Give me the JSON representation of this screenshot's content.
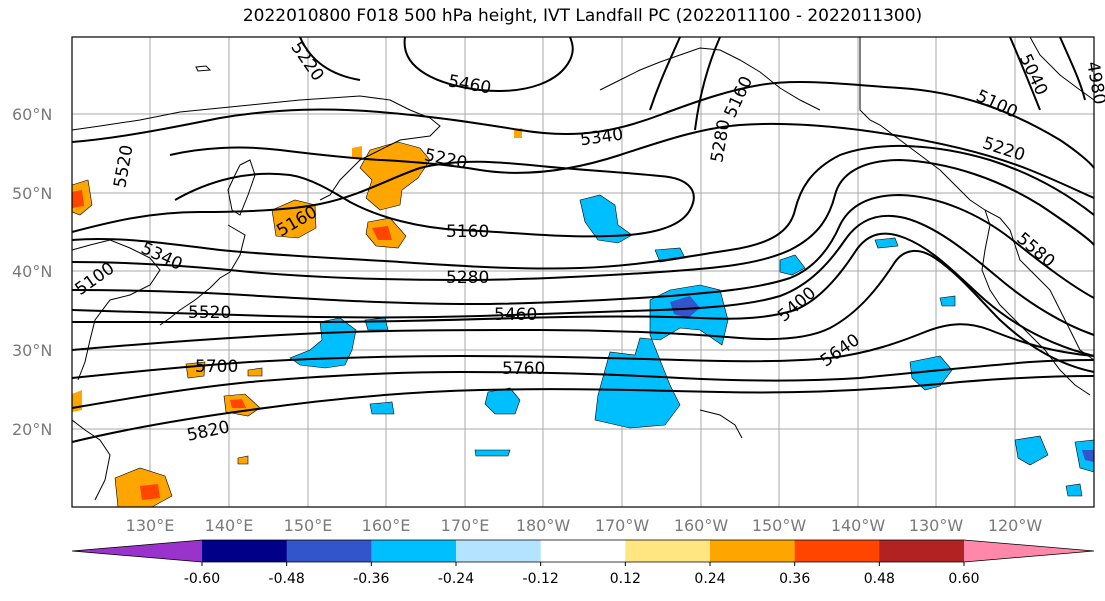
{
  "title": "2022010800 F018 500 hPa height, IVT Landfall PC (2022011100 - 2022011300)",
  "lat_labels": [
    "60°N",
    "50°N",
    "40°N",
    "30°N",
    "20°N"
  ],
  "lon_labels": [
    "130°E",
    "140°E",
    "150°E",
    "160°E",
    "170°E",
    "180°W",
    "170°W",
    "160°W",
    "150°W",
    "140°W",
    "130°W",
    "120°W"
  ],
  "contour_labels": [
    "5460",
    "5340",
    "5220",
    "5160",
    "5100",
    "5220",
    "5160",
    "5280",
    "5460",
    "5760",
    "5580",
    "5400",
    "5640",
    "5700",
    "5820",
    "5340",
    "5520",
    "5160",
    "5280",
    "5040",
    "4980",
    "5520",
    "5220",
    "5100"
  ],
  "colorbar": {
    "ticks": [
      "-0.60",
      "-0.48",
      "-0.36",
      "-0.24",
      "-0.12",
      "0.12",
      "0.24",
      "0.36",
      "0.48",
      "0.60"
    ],
    "colors": [
      "#9933cc",
      "#000088",
      "#3355cc",
      "#00bfff",
      "#b3e3ff",
      "#ffffff",
      "#ffe680",
      "#ffa500",
      "#ff4500",
      "#b22222",
      "#ff88aa"
    ]
  }
}
